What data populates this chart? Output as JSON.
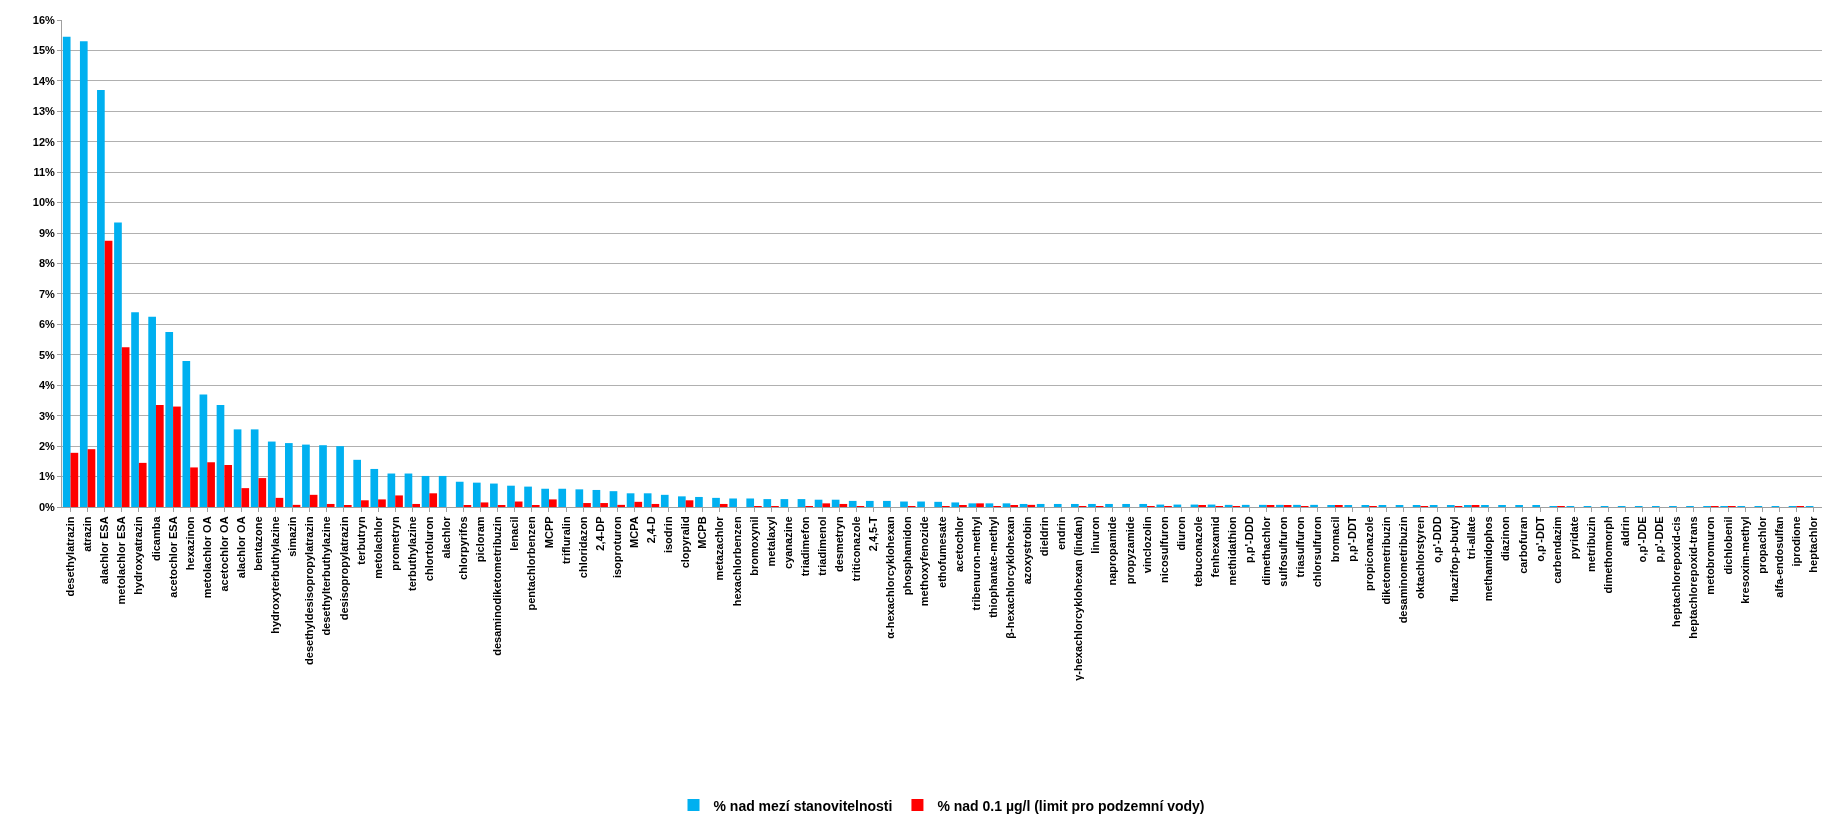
{
  "chart_data": {
    "type": "bar",
    "categories": [
      "desethylatrazin",
      "atrazin",
      "alachlor ESA",
      "metolachlor ESA",
      "hydroxyatrazin",
      "dicamba",
      "acetochlor ESA",
      "hexazinon",
      "metolachlor OA",
      "acetochlor OA",
      "alachlor OA",
      "bentazone",
      "hydroxyterbuthylazine",
      "simazin",
      "desethyldesisopropylatrazin",
      "desethylterbuthylazine",
      "desisopropylatrazin",
      "terbutryn",
      "metolachlor",
      "prometryn",
      "terbuthylazine",
      "chlortoluron",
      "alachlor",
      "chlorpyrifos",
      "picloram",
      "desaminodiketometribuzin",
      "lenacil",
      "pentachlorbenzen",
      "MCPP",
      "trifluralin",
      "chloridazon",
      "2,4-DP",
      "isoproturon",
      "MCPA",
      "2,4-D",
      "isodrin",
      "clopyralid",
      "MCPB",
      "metazachlor",
      "hexachlorbenzen",
      "bromoxynil",
      "metalaxyl",
      "cyanazine",
      "triadimefon",
      "triadimenol",
      "desmetryn",
      "triticonazole",
      "2,4,5-T",
      "α-hexachlorcyklohexan",
      "phosphamidon",
      "methoxyfenozide",
      "ethofumesate",
      "acetochlor",
      "tribenuron-methyl",
      "thiophanate-methyl",
      "β-hexachlorcyklohexan",
      "azoxystrobin",
      "dieldrin",
      "endrin",
      "γ-hexachlorcyklohexan (lindan)",
      "linuron",
      "napropamide",
      "propyzamide",
      "vinclozolin",
      "nicosulfuron",
      "diuron",
      "tebuconazole",
      "fenhexamid",
      "methidathion",
      "p,p'-DDD",
      "dimethachlor",
      "sulfosulfuron",
      "triasulfuron",
      "chlorsulfuron",
      "bromacil",
      "p,p'-DDT",
      "propiconazole",
      "diketometribuzin",
      "desaminometribuzin",
      "oktachlorstyren",
      "o,p'-DDD",
      "fluazifop-p-butyl",
      "tri-allate",
      "methamidophos",
      "diazinon",
      "carbofuran",
      "o,p'-DDT",
      "carbendazim",
      "pyridate",
      "metribuzin",
      "dimethomorph",
      "aldrin",
      "o,p'-DDE",
      "p,p'-DDE",
      "heptachlorepoxid-cis",
      "heptachlorepoxid-trans",
      "metobromuron",
      "dichlobenil",
      "kresoxim-methyl",
      "propachlor",
      "alfa-endosulfan",
      "iprodione",
      "heptachlor"
    ],
    "series": [
      {
        "name": "% nad mezí stanovitelnosti",
        "color": "#00b0f0",
        "values": [
          15.45,
          15.3,
          13.7,
          9.35,
          6.4,
          6.25,
          5.75,
          4.8,
          3.7,
          3.35,
          2.55,
          2.55,
          2.15,
          2.1,
          2.05,
          2.03,
          2.0,
          1.55,
          1.25,
          1.1,
          1.1,
          1.02,
          1.02,
          0.83,
          0.8,
          0.77,
          0.7,
          0.67,
          0.6,
          0.6,
          0.58,
          0.56,
          0.52,
          0.45,
          0.45,
          0.4,
          0.35,
          0.33,
          0.3,
          0.28,
          0.28,
          0.26,
          0.26,
          0.26,
          0.24,
          0.24,
          0.2,
          0.2,
          0.2,
          0.18,
          0.18,
          0.17,
          0.15,
          0.12,
          0.12,
          0.12,
          0.1,
          0.1,
          0.1,
          0.1,
          0.1,
          0.1,
          0.1,
          0.1,
          0.08,
          0.08,
          0.08,
          0.08,
          0.07,
          0.07,
          0.07,
          0.07,
          0.07,
          0.07,
          0.05,
          0.05,
          0.05,
          0.04,
          0.04,
          0.04,
          0.04,
          0.04,
          0.04,
          0.04,
          0.04,
          0.04,
          0.04,
          0.02,
          0.02,
          0.02,
          0.02,
          0.02,
          0.02,
          0.02,
          0.02,
          0.02,
          0.02,
          0.02,
          0.02,
          0.02,
          0.02,
          0.02,
          0.02
        ]
      },
      {
        "name": "% nad 0.1 µg/l (limit pro podzemní vody)",
        "color": "#ff0000",
        "values": [
          1.78,
          1.9,
          8.75,
          5.25,
          1.45,
          3.35,
          3.3,
          1.3,
          1.47,
          1.38,
          0.62,
          0.95,
          0.3,
          0.07,
          0.4,
          0.1,
          0.05,
          0.22,
          0.25,
          0.38,
          0.1,
          0.45,
          0,
          0.05,
          0.15,
          0.05,
          0.18,
          0.05,
          0.25,
          0,
          0.13,
          0.13,
          0.07,
          0.17,
          0.1,
          0,
          0.22,
          0,
          0.1,
          0,
          0.02,
          0.02,
          0,
          0.02,
          0.12,
          0.1,
          0.02,
          0,
          0,
          0.03,
          0,
          0.02,
          0.04,
          0.12,
          0.02,
          0.06,
          0.07,
          0,
          0,
          0.02,
          0.02,
          0,
          0,
          0.02,
          0.02,
          0,
          0.05,
          0.01,
          0.02,
          0,
          0.04,
          0.04,
          0.01,
          0,
          0.04,
          0,
          0.02,
          0,
          0,
          0.03,
          0,
          0.03,
          0.04,
          0,
          0,
          0,
          0,
          0.02,
          0,
          0,
          0,
          0,
          0,
          0,
          0,
          0,
          0.02,
          0.02,
          0,
          0,
          0,
          0.02,
          0
        ]
      }
    ],
    "ylim": [
      0,
      16
    ],
    "yticks": [
      {
        "value": 0,
        "label": "0%"
      },
      {
        "value": 1,
        "label": "1%"
      },
      {
        "value": 2,
        "label": "2%"
      },
      {
        "value": 3,
        "label": "3%"
      },
      {
        "value": 4,
        "label": "4%"
      },
      {
        "value": 5,
        "label": "5%"
      },
      {
        "value": 6,
        "label": "6%"
      },
      {
        "value": 7,
        "label": "7%"
      },
      {
        "value": 8,
        "label": "8%"
      },
      {
        "value": 9,
        "label": "9%"
      },
      {
        "value": 10,
        "label": "10%"
      },
      {
        "value": 11,
        "label": "11%"
      },
      {
        "value": 12,
        "label": "12%"
      },
      {
        "value": 13,
        "label": "13%"
      },
      {
        "value": 14,
        "label": "14%"
      },
      {
        "value": 15,
        "label": "15%"
      },
      {
        "value": 16,
        "label": "16%"
      }
    ],
    "grid": "y",
    "legend": "bottom"
  }
}
